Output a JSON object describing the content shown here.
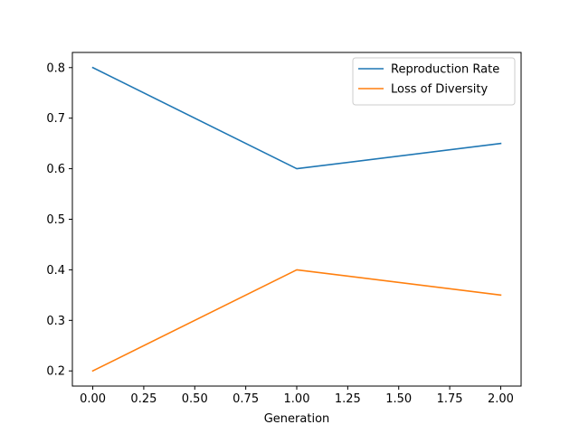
{
  "chart_data": {
    "type": "line",
    "title": "",
    "xlabel": "Generation",
    "ylabel": "",
    "x": [
      0,
      1,
      2
    ],
    "xlim": [
      -0.1,
      2.1
    ],
    "ylim": [
      0.17,
      0.83
    ],
    "xticks": [
      "0.00",
      "0.25",
      "0.50",
      "0.75",
      "1.00",
      "1.25",
      "1.50",
      "1.75",
      "2.00"
    ],
    "yticks": [
      "0.2",
      "0.3",
      "0.4",
      "0.5",
      "0.6",
      "0.7",
      "0.8"
    ],
    "grid": false,
    "legend_position": "top-right",
    "series": [
      {
        "name": "Reproduction Rate",
        "values": [
          0.8,
          0.6,
          0.65
        ],
        "color": "#1f77b4"
      },
      {
        "name": "Loss of Diversity",
        "values": [
          0.2,
          0.4,
          0.35
        ],
        "color": "#ff7f0e"
      }
    ]
  }
}
